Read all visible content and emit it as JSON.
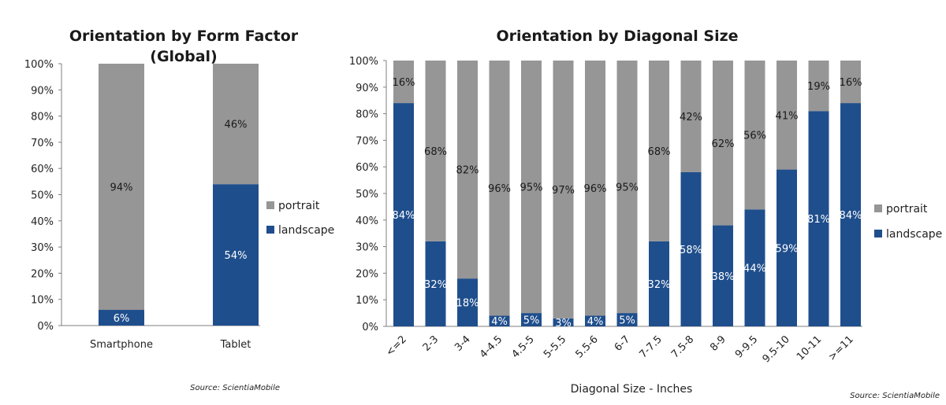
{
  "colors": {
    "portrait": "#969696",
    "landscape": "#1f4e8c",
    "axis": "#7f7f7f"
  },
  "chart_data": [
    {
      "type": "bar",
      "stacked": true,
      "title_line1": "Orientation by Form Factor",
      "title_line2": "(Global)",
      "xlabel": "",
      "ylabel": "",
      "ylim": [
        0,
        100
      ],
      "yticks": [
        "0%",
        "10%",
        "20%",
        "30%",
        "40%",
        "50%",
        "60%",
        "70%",
        "80%",
        "90%",
        "100%"
      ],
      "categories": [
        "Smartphone",
        "Tablet"
      ],
      "series": [
        {
          "name": "landscape",
          "values": [
            6,
            54
          ],
          "labels": [
            "6%",
            "54%"
          ]
        },
        {
          "name": "portrait",
          "values": [
            94,
            46
          ],
          "labels": [
            "94%",
            "46%"
          ]
        }
      ],
      "legend": [
        "portrait",
        "landscape"
      ],
      "legend_position": "right",
      "source": "Source: ScientiaMobile"
    },
    {
      "type": "bar",
      "stacked": true,
      "title": "Orientation by Diagonal Size",
      "xlabel": "Diagonal Size - Inches",
      "ylabel": "",
      "ylim": [
        0,
        100
      ],
      "yticks": [
        "0%",
        "10%",
        "20%",
        "30%",
        "40%",
        "50%",
        "60%",
        "70%",
        "80%",
        "90%",
        "100%"
      ],
      "categories": [
        "<=2",
        "2-3",
        "3-4",
        "4-4.5",
        "4.5-5",
        "5-5.5",
        "5.5-6",
        "6-7",
        "7-7.5",
        "7.5-8",
        "8-9",
        "9-9.5",
        "9.5-10",
        "10-11",
        ">=11"
      ],
      "series": [
        {
          "name": "landscape",
          "values": [
            84,
            32,
            18,
            4,
            5,
            3,
            4,
            5,
            32,
            58,
            38,
            44,
            59,
            81,
            84
          ],
          "labels": [
            "84%",
            "32%",
            "18%",
            "4%",
            "5%",
            "3%",
            "4%",
            "5%",
            "32%",
            "58%",
            "38%",
            "44%",
            "59%",
            "81%",
            "84%"
          ]
        },
        {
          "name": "portrait",
          "values": [
            16,
            68,
            82,
            96,
            95,
            97,
            96,
            95,
            68,
            42,
            62,
            56,
            41,
            19,
            16
          ],
          "labels": [
            "16%",
            "68%",
            "82%",
            "96%",
            "95%",
            "97%",
            "96%",
            "95%",
            "68%",
            "42%",
            "62%",
            "56%",
            "41%",
            "19%",
            "16%"
          ]
        }
      ],
      "legend": [
        "portrait",
        "landscape"
      ],
      "legend_position": "right",
      "source": "Source: ScientiaMobile"
    }
  ]
}
